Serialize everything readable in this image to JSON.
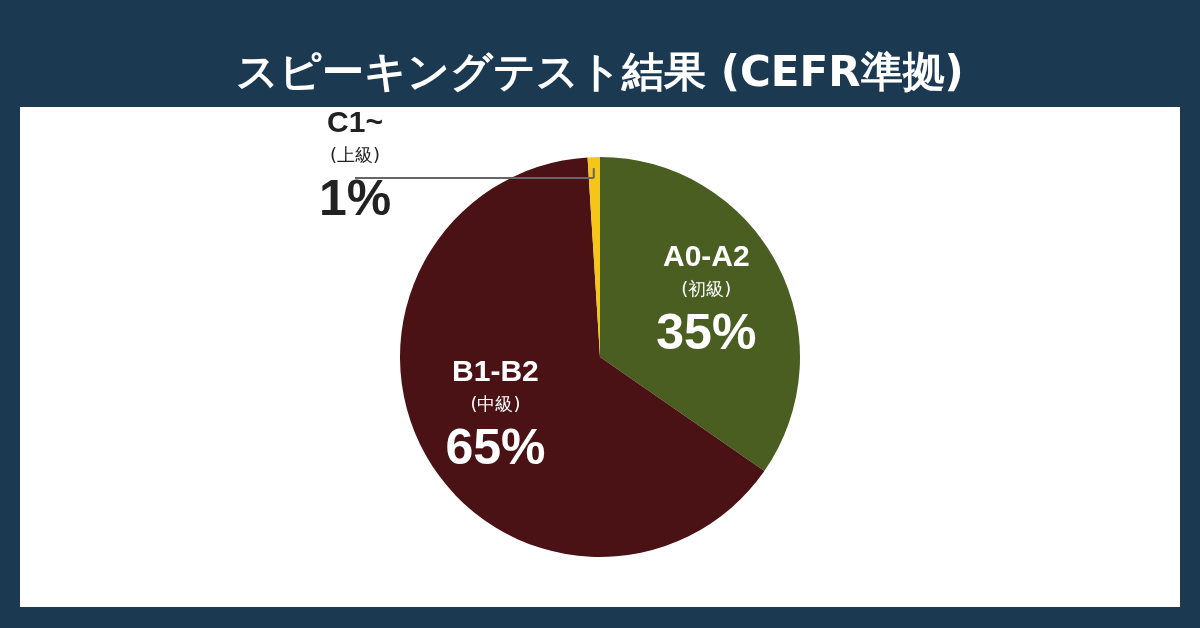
{
  "chart_data": {
    "type": "pie",
    "title": "スピーキングテスト結果 (CEFR準拠)",
    "categories": [
      "A0-A2 (初級)",
      "B1-B2 (中級)",
      "C1~ (上級)"
    ],
    "values": [
      35,
      65,
      1
    ],
    "colors": [
      "#4a5e22",
      "#4a1215",
      "#f5c518"
    ],
    "value_labels": [
      "35%",
      "65%",
      "1%"
    ],
    "legend": false
  }
}
